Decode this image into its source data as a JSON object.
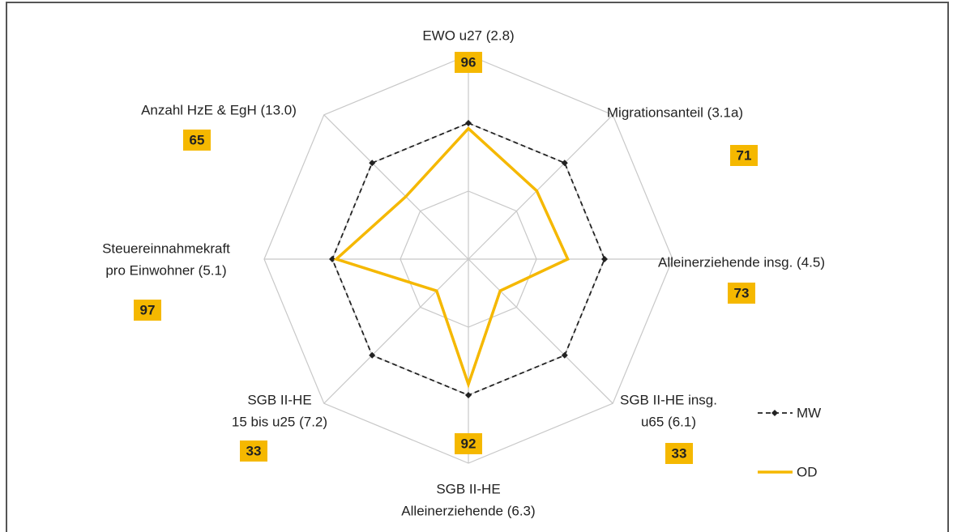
{
  "chart_data": {
    "type": "radar",
    "categories": [
      [
        "EWO u27 (2.8)"
      ],
      [
        "Migrationsanteil (3.1a)"
      ],
      [
        "Alleinerziehende insg. (4.5)"
      ],
      [
        "SGB II-HE insg.",
        "u65 (6.1)"
      ],
      [
        "SGB II-HE",
        "Alleinerziehende (6.3)"
      ],
      [
        "SGB II-HE",
        "15 bis u25 (7.2)"
      ],
      [
        "Steuereinnahmekraft",
        "pro Einwohner (5.1)"
      ],
      [
        "Anzahl HzE & EgH (13.0)"
      ]
    ],
    "series": [
      {
        "name": "MW",
        "color": "#222222",
        "dashed": true,
        "markers": true,
        "values": [
          100,
          100,
          100,
          100,
          100,
          100,
          100,
          100
        ]
      },
      {
        "name": "OD",
        "color": "#f5b800",
        "dashed": false,
        "markers": false,
        "values": [
          96,
          71,
          73,
          33,
          92,
          33,
          97,
          65
        ],
        "value_labels_shown": true
      }
    ],
    "rlim": [
      0,
      150
    ],
    "rticks": [
      50,
      100,
      150
    ],
    "grid": true,
    "legend": "lower right"
  }
}
